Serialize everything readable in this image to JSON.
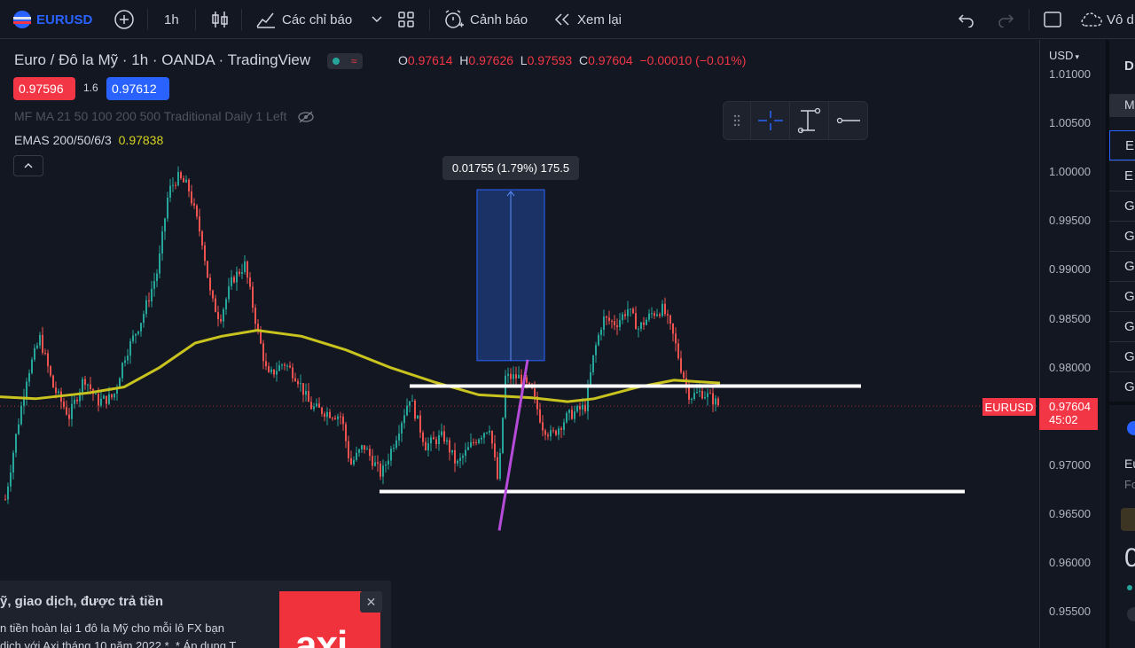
{
  "toolbar": {
    "symbol": "EURUSD",
    "interval": "1h",
    "indicators_label": "Các chỉ báo",
    "alert_label": "Cảnh báo",
    "replay_label": "Xem lại",
    "layout_name": "Vô d"
  },
  "legend": {
    "title": "Euro / Đô la Mỹ · 1h · OANDA · TradingView",
    "ohlc": {
      "o_label": "O",
      "o": "0.97614",
      "h_label": "H",
      "h": "0.97626",
      "l_label": "L",
      "l": "0.97593",
      "c_label": "C",
      "c": "0.97604",
      "change": "−0.00010 (−0.01%)"
    },
    "sell_price": "0.97596",
    "spread": "1.6",
    "buy_price": "0.97612",
    "indicator1": "MF MA 21 50 100 200 500 Traditional Daily 1 Left",
    "indicator2_name": "EMAS 200/50/6/3",
    "indicator2_value": "0.97838"
  },
  "measure": {
    "label": "0.01755 (1.79%) 175.5"
  },
  "price_axis": {
    "currency": "USD",
    "ticks": [
      "1.01000",
      "1.00500",
      "1.00000",
      "0.99500",
      "0.99000",
      "0.98500",
      "0.98000",
      "0.97500",
      "0.97000",
      "0.96500",
      "0.96000",
      "0.95500"
    ],
    "symbol_tag": "EURUSD",
    "current_price": "0.97604",
    "countdown": "45:02"
  },
  "ad": {
    "title": "ỹ, giao dịch, được trả tiền",
    "line1": "n tiền hoàn lại 1 đô la Mỹ cho mỗi lô FX bạn",
    "line2": "dịch với Axi tháng 10 năm 2022 *. * Áp dụng T",
    "brand": "axi"
  },
  "right_panel": {
    "header": "D",
    "sub": "M",
    "items": [
      "E",
      "E",
      "G",
      "G",
      "G",
      "G",
      "G",
      "G",
      "G"
    ],
    "detail1": "Eu",
    "detail2": "Fo",
    "detail3": "0"
  },
  "colors": {
    "background": "#131722",
    "up": "#26a69a",
    "down": "#ef5350",
    "ema": "#c8c31e",
    "accent": "#2962ff",
    "price_tag": "#f23645",
    "trend": "#b54cd9"
  },
  "chart": {
    "y_min": 0.952,
    "y_max": 1.012,
    "ema_points": [
      [
        0,
        0.977
      ],
      [
        40,
        0.9768
      ],
      [
        100,
        0.9774
      ],
      [
        140,
        0.978
      ],
      [
        180,
        0.98
      ],
      [
        220,
        0.9825
      ],
      [
        250,
        0.9832
      ],
      [
        290,
        0.9838
      ],
      [
        340,
        0.9832
      ],
      [
        390,
        0.9818
      ],
      [
        440,
        0.98
      ],
      [
        490,
        0.9785
      ],
      [
        540,
        0.9772
      ],
      [
        600,
        0.9769
      ],
      [
        640,
        0.9765
      ],
      [
        670,
        0.9768
      ],
      [
        720,
        0.978
      ],
      [
        760,
        0.9787
      ],
      [
        812,
        0.9784
      ]
    ],
    "support_lines": [
      [
        462,
        971,
        0.9781
      ],
      [
        428,
        1088,
        0.9673
      ]
    ],
    "trend_line": [
      [
        563,
        0.9633
      ],
      [
        595,
        0.9808
      ]
    ],
    "measure_box": {
      "x1": 538,
      "x2": 614,
      "top": 0.9982,
      "bottom": 0.9807
    }
  }
}
